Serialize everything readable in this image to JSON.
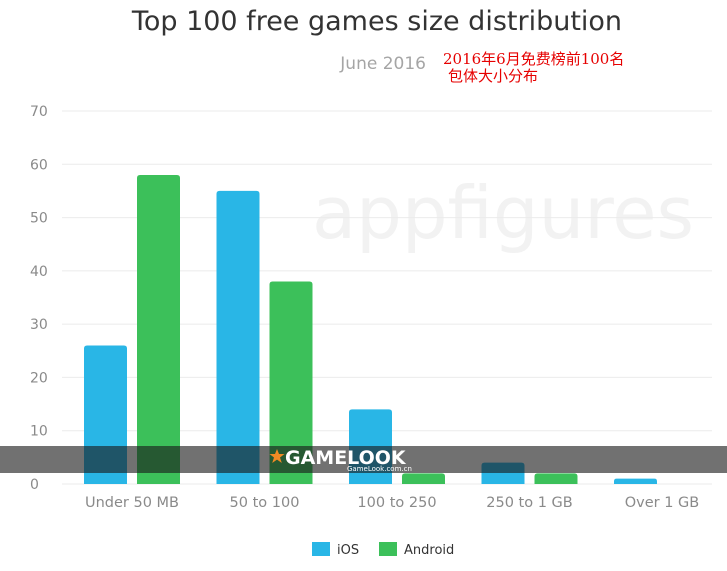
{
  "chart_data": {
    "type": "bar",
    "title": "Top 100 free games size distribution",
    "subtitle": "June 2016",
    "annotation": [
      "2016年6月免费榜前100名",
      "包体大小分布"
    ],
    "categories": [
      "Under 50 MB",
      "50 to 100",
      "100 to 250",
      "250 to 1 GB",
      "Over 1 GB"
    ],
    "series": [
      {
        "name": "iOS",
        "color": "#29b6e6",
        "values": [
          26,
          55,
          14,
          4,
          1
        ]
      },
      {
        "name": "Android",
        "color": "#3cc05a",
        "values": [
          58,
          38,
          2,
          2,
          0
        ]
      }
    ],
    "ylim": [
      0,
      70
    ],
    "yticks": [
      0,
      10,
      20,
      30,
      40,
      50,
      60,
      70
    ],
    "xlabel": "",
    "ylabel": "",
    "grid": true,
    "legend": "bottom-center"
  },
  "watermark": "appfigures",
  "overlay_banner": {
    "brand": "GAMELOOK",
    "url": "GameLook.com.cn"
  }
}
